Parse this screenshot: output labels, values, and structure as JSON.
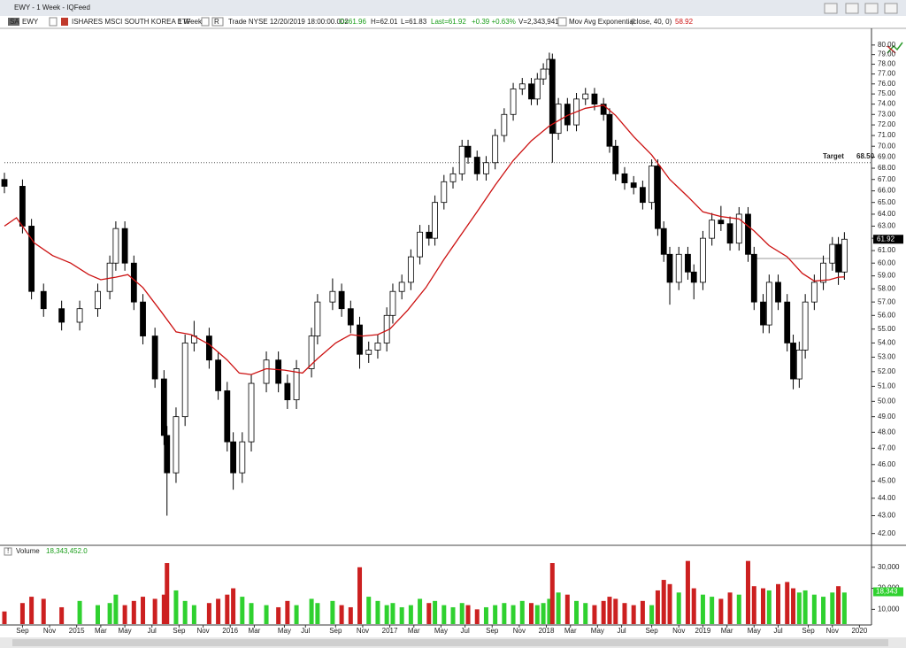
{
  "window": {
    "title": "EWY - 1 Week - IQFeed"
  },
  "info": {
    "badge": "SA",
    "symbol": "EWY",
    "name": "ISHARES MSCI SOUTH KOREA ETF",
    "interval": "1 Week",
    "route": "R",
    "quote": "Trade NYSE 12/20/2019 18:00:00.002",
    "open": "O=61.96",
    "high": "H=62.01",
    "low": "L=61.83",
    "last": "Last=61.92",
    "change": "+0.39 +0.63%",
    "volume": "V=2,343,941",
    "study": "Mov Avg Exponential",
    "study_params": "(close, 40, 0)",
    "study_value": 58.92
  },
  "chart_data": [
    {
      "type": "candlestick",
      "log_scale": true,
      "up_color": "#ffffff",
      "down_color": "#000000",
      "x": [
        0,
        6,
        9,
        13,
        19,
        25,
        31,
        35,
        37,
        40,
        43,
        46,
        50,
        53,
        54,
        57,
        60,
        63,
        68,
        71,
        74,
        76,
        79,
        82,
        87,
        91,
        94,
        97,
        102,
        104,
        109,
        112,
        115,
        118,
        121,
        124,
        127,
        129,
        132,
        135,
        138,
        141,
        143,
        146,
        149,
        152,
        154,
        157,
        160,
        163,
        166,
        169,
        172,
        175,
        177,
        179,
        181,
        182,
        184,
        187,
        190,
        193,
        196,
        199,
        201,
        203,
        206,
        209,
        212,
        215,
        217,
        219,
        221,
        224,
        227,
        229,
        232,
        235,
        238,
        241,
        244,
        247,
        249,
        252,
        254,
        257,
        260,
        262,
        264,
        266,
        269,
        272,
        275,
        277,
        279
      ],
      "open": [
        67,
        66.4,
        63,
        57.8,
        56.5,
        55.5,
        56.5,
        57.8,
        60,
        62.8,
        60,
        57,
        54.5,
        51.5,
        47.8,
        45.5,
        49,
        54,
        54.5,
        52.8,
        50.7,
        47.4,
        45.5,
        47.4,
        51.2,
        52.8,
        51.2,
        50.1,
        52.2,
        54.5,
        57,
        57.8,
        56.5,
        55.3,
        53.2,
        53.5,
        54,
        56,
        57.8,
        58.5,
        60.5,
        62.5,
        62,
        65,
        66.8,
        67.5,
        70,
        69,
        67.5,
        68.5,
        71,
        73,
        75.5,
        76,
        74.5,
        76.5,
        77.5,
        78.5,
        71.2,
        74,
        72,
        74.5,
        75,
        74,
        73,
        70,
        67.5,
        66.7,
        66.3,
        65,
        68.2,
        62.8,
        60.7,
        58.5,
        60.7,
        59.3,
        58.5,
        62,
        63.5,
        63.2,
        61.6,
        64,
        60.7,
        57,
        55.3,
        58.5,
        57,
        54,
        51.5,
        53.5,
        57,
        58.5,
        60,
        61.5,
        59.3
      ],
      "high": [
        67.6,
        67,
        63.6,
        58.4,
        57.1,
        57.1,
        58.4,
        60.6,
        63.4,
        63.4,
        60.6,
        57.6,
        55.1,
        52.1,
        48.4,
        49.6,
        54.6,
        55.6,
        55.1,
        53.4,
        51.3,
        48,
        48,
        51.8,
        53.4,
        53.4,
        51.8,
        52.8,
        55.1,
        57.6,
        58.8,
        58.4,
        57.1,
        55.9,
        54.1,
        54.6,
        56.6,
        58.4,
        59.1,
        61.1,
        63.1,
        63.1,
        65.6,
        67.4,
        68.1,
        70.6,
        70.6,
        69.6,
        69.1,
        71.6,
        73.6,
        76.1,
        76.6,
        76.6,
        77.1,
        78.1,
        79.2,
        79.1,
        74.6,
        74.6,
        75.1,
        75.6,
        75.6,
        74.6,
        73.6,
        70.6,
        68.1,
        67.3,
        66.9,
        68.8,
        68.8,
        63.4,
        61.3,
        61.3,
        61.3,
        59.9,
        62.6,
        64.1,
        64.7,
        63.8,
        64.6,
        64.6,
        61.3,
        57.6,
        59.1,
        59.1,
        57.6,
        54.6,
        54.1,
        57.6,
        59.1,
        60.6,
        62.1,
        62.1,
        62.5
      ],
      "low": [
        65.8,
        62.4,
        57.2,
        55.9,
        54.9,
        54.9,
        55.9,
        57.2,
        59.4,
        59.4,
        56.4,
        53.9,
        50.9,
        47.2,
        43,
        44.9,
        48.4,
        53.4,
        52.2,
        50.1,
        46.8,
        44.5,
        44.9,
        46.8,
        50.6,
        50.6,
        49.5,
        49.5,
        51.6,
        53.9,
        56.4,
        55.9,
        54.7,
        52.2,
        52.6,
        52.9,
        53.4,
        55.4,
        57.2,
        57.9,
        59.9,
        61.4,
        61.4,
        64.4,
        66.2,
        66.9,
        68.4,
        66.9,
        66.9,
        67.9,
        70.4,
        72.4,
        74.9,
        73.9,
        73.9,
        75.9,
        76.9,
        68.5,
        70.6,
        71.4,
        71.4,
        73.9,
        73.4,
        72.4,
        69.4,
        66.9,
        66.1,
        65.7,
        64.4,
        64.4,
        62.2,
        60.1,
        56.8,
        57.9,
        58.7,
        57.2,
        57.9,
        61.4,
        62.6,
        61,
        61,
        60.1,
        56.4,
        54.7,
        54.7,
        56.4,
        53.4,
        50.8,
        50.9,
        52.9,
        56.4,
        57.9,
        59.4,
        58.3,
        58.7
      ],
      "close": [
        66.4,
        63,
        57.8,
        56.5,
        55.5,
        56.5,
        57.8,
        60,
        62.8,
        60,
        57,
        54.5,
        51.5,
        47.8,
        45.5,
        49,
        54,
        54.5,
        52.8,
        50.7,
        47.4,
        45.5,
        47.4,
        51.2,
        52.8,
        51.2,
        50.1,
        52.2,
        54.5,
        57,
        57.8,
        56.5,
        55.3,
        53.2,
        53.5,
        54,
        56,
        57.8,
        58.5,
        60.5,
        62.5,
        62,
        65,
        66.8,
        67.5,
        70,
        69,
        67.5,
        68.5,
        71,
        73,
        75.5,
        76,
        74.5,
        76.5,
        77.5,
        78.5,
        71.2,
        74,
        72,
        74.5,
        75,
        74,
        73,
        70,
        67.5,
        66.7,
        66.3,
        65,
        68.2,
        62.8,
        60.7,
        58.5,
        60.7,
        59.3,
        58.5,
        62,
        63.5,
        63.2,
        61.6,
        64,
        60.7,
        57,
        55.3,
        58.5,
        57,
        54,
        51.5,
        53.5,
        57,
        58.5,
        60,
        61.5,
        59.3,
        61.92
      ],
      "ema": {
        "color": "#cc1111",
        "x": [
          0,
          4,
          10,
          16,
          22,
          28,
          32,
          37,
          41,
          46,
          52,
          57,
          62,
          68,
          74,
          78,
          82,
          87,
          93,
          99,
          104,
          110,
          115,
          119,
          124,
          128,
          134,
          140,
          146,
          152,
          157,
          163,
          169,
          175,
          181,
          187,
          193,
          199,
          203,
          209,
          215,
          221,
          227,
          232,
          238,
          244,
          249,
          254,
          260,
          265,
          269,
          274,
          277,
          279
        ],
        "values": [
          63,
          63.7,
          61.6,
          60.6,
          60,
          59.1,
          58.7,
          58.9,
          59.1,
          58.1,
          56.3,
          54.8,
          54.6,
          53.9,
          52.8,
          51.9,
          51.8,
          52.2,
          52.1,
          51.9,
          52.9,
          54,
          54.6,
          54.5,
          54.6,
          55,
          56.4,
          58.1,
          60.3,
          62.4,
          64.2,
          66.5,
          68.7,
          70.5,
          71.9,
          72.9,
          73.6,
          73.9,
          72.9,
          70.9,
          69.2,
          67,
          65.5,
          64.2,
          63.8,
          63.6,
          62.6,
          61.4,
          60.5,
          59.2,
          58.6,
          58.7,
          58.9,
          58.92
        ]
      },
      "target": {
        "label": "Target",
        "value": {
          "value": 68.5,
          "label": "68.50"
        }
      },
      "last_price": 61.92,
      "xlim": [
        0,
        288
      ],
      "ylim": [
        41.4,
        81.4
      ],
      "yticks": [
        {
          "value": 42,
          "label": "42.00"
        },
        {
          "value": 43,
          "label": "43.00"
        },
        {
          "value": 44,
          "label": "44.00"
        },
        {
          "value": 45,
          "label": "45.00"
        },
        {
          "value": 46,
          "label": "46.00"
        },
        {
          "value": 47,
          "label": "47.00"
        },
        {
          "value": 48,
          "label": "48.00"
        },
        {
          "value": 49,
          "label": "49.00"
        },
        {
          "value": 50,
          "label": "50.00"
        },
        {
          "value": 51,
          "label": "51.00"
        },
        {
          "value": 52,
          "label": "52.00"
        },
        {
          "value": 53,
          "label": "53.00"
        },
        {
          "value": 54,
          "label": "54.00"
        },
        {
          "value": 55,
          "label": "55.00"
        },
        {
          "value": 56,
          "label": "56.00"
        },
        {
          "value": 57,
          "label": "57.00"
        },
        {
          "value": 58,
          "label": "58.00"
        },
        {
          "value": 59,
          "label": "59.00"
        },
        {
          "value": 60,
          "label": "60.00"
        },
        {
          "value": 61,
          "label": "61.00"
        },
        {
          "value": 62,
          "label": "62.00"
        },
        {
          "value": 63,
          "label": "63.00"
        },
        {
          "value": 64,
          "label": "64.00"
        },
        {
          "value": 65,
          "label": "65.00"
        },
        {
          "value": 66,
          "label": "66.00"
        },
        {
          "value": 67,
          "label": "67.00"
        },
        {
          "value": 68,
          "label": "68.00"
        },
        {
          "value": 69,
          "label": "69.00"
        },
        {
          "value": 70,
          "label": "70.00"
        },
        {
          "value": 71,
          "label": "71.00"
        },
        {
          "value": 72,
          "label": "72.00"
        },
        {
          "value": 73,
          "label": "73.00"
        },
        {
          "value": 74,
          "label": "74.00"
        },
        {
          "value": 75,
          "label": "75.00"
        },
        {
          "value": 76,
          "label": "76.00"
        },
        {
          "value": 77,
          "label": "77.00"
        },
        {
          "value": 78,
          "label": "78.00"
        },
        {
          "value": 79,
          "label": "79.00"
        },
        {
          "value": 80,
          "label": "80.00"
        }
      ],
      "xticks": [
        {
          "value": 6,
          "label": "Sep"
        },
        {
          "value": 15,
          "label": "Nov"
        },
        {
          "value": 24,
          "label": "2015"
        },
        {
          "value": 32,
          "label": "Mar"
        },
        {
          "value": 40,
          "label": "May"
        },
        {
          "value": 49,
          "label": "Jul"
        },
        {
          "value": 58,
          "label": "Sep"
        },
        {
          "value": 66,
          "label": "Nov"
        },
        {
          "value": 75,
          "label": "2016"
        },
        {
          "value": 83,
          "label": "Mar"
        },
        {
          "value": 93,
          "label": "May"
        },
        {
          "value": 100,
          "label": "Jul"
        },
        {
          "value": 110,
          "label": "Sep"
        },
        {
          "value": 119,
          "label": "Nov"
        },
        {
          "value": 128,
          "label": "2017"
        },
        {
          "value": 136,
          "label": "Mar"
        },
        {
          "value": 145,
          "label": "May"
        },
        {
          "value": 153,
          "label": "Jul"
        },
        {
          "value": 162,
          "label": "Sep"
        },
        {
          "value": 171,
          "label": "Nov"
        },
        {
          "value": 180,
          "label": "2018"
        },
        {
          "value": 188,
          "label": "Mar"
        },
        {
          "value": 197,
          "label": "May"
        },
        {
          "value": 205,
          "label": "Jul"
        },
        {
          "value": 215,
          "label": "Sep"
        },
        {
          "value": 224,
          "label": "Nov"
        },
        {
          "value": 232,
          "label": "2019"
        },
        {
          "value": 240,
          "label": "Mar"
        },
        {
          "value": 249,
          "label": "May"
        },
        {
          "value": 257,
          "label": "Jul"
        },
        {
          "value": 267,
          "label": "Sep"
        },
        {
          "value": 275,
          "label": "Nov"
        },
        {
          "value": 284,
          "label": "2020"
        }
      ]
    },
    {
      "type": "bar",
      "title": "Volume",
      "total": {
        "value": 18343452,
        "label": "18,343,452.0"
      },
      "up_color": "#2fd12f",
      "down_color": "#cc2020",
      "values": [
        9000,
        13000,
        16000,
        15000,
        11000,
        14000,
        12000,
        13000,
        17000,
        12000,
        14000,
        16000,
        15000,
        17000,
        32000,
        19000,
        14000,
        12000,
        13000,
        15000,
        17000,
        20000,
        16000,
        13000,
        12000,
        11000,
        14000,
        12000,
        15000,
        13000,
        14000,
        12000,
        11000,
        30000,
        16000,
        14000,
        12000,
        13000,
        11000,
        12000,
        15000,
        13000,
        14000,
        12000,
        11000,
        13000,
        12000,
        10000,
        11000,
        12000,
        13000,
        12000,
        14000,
        13000,
        12000,
        13000,
        15000,
        32000,
        18000,
        17000,
        14000,
        13000,
        12000,
        14000,
        16000,
        15000,
        13000,
        12000,
        14000,
        12000,
        19000,
        24000,
        22000,
        18000,
        33000,
        20000,
        17000,
        16000,
        15000,
        18000,
        17000,
        33000,
        21000,
        20000,
        19000,
        22000,
        23000,
        20000,
        18000,
        19000,
        17000,
        16000,
        18000,
        21000,
        18000
      ],
      "ylim": [
        3000,
        40000
      ],
      "yticks": [
        {
          "value": 10000,
          "label": "10,000"
        },
        {
          "value": 20000,
          "label": "20,000"
        },
        {
          "value": 30000,
          "label": "30,000"
        }
      ],
      "last_badge": {
        "value": 18343,
        "label": "18,343"
      }
    }
  ]
}
